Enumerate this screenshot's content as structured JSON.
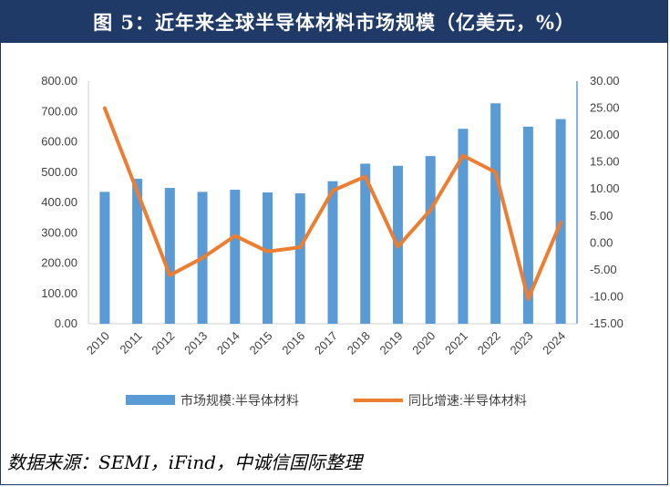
{
  "header": {
    "title": "图 5：近年来全球半导体材料市场规模（亿美元，%）"
  },
  "colors": {
    "bar": "#5b9bd5",
    "line": "#ed7d31",
    "title_bg": "#1f3a66"
  },
  "chart_data": {
    "type": "bar",
    "categories": [
      "2010",
      "2011",
      "2012",
      "2013",
      "2014",
      "2015",
      "2016",
      "2017",
      "2018",
      "2019",
      "2020",
      "2021",
      "2022",
      "2023",
      "2024"
    ],
    "series": [
      {
        "name": "市场规模:半导体材料",
        "type": "bar",
        "axis": "left",
        "values": [
          435,
          478,
          448,
          435,
          442,
          433,
          430,
          470,
          528,
          521,
          553,
          643,
          727,
          650,
          675
        ]
      },
      {
        "name": "同比增速:半导体材料",
        "type": "line",
        "axis": "right",
        "values": [
          25.0,
          9.5,
          -6.0,
          -2.8,
          1.3,
          -1.6,
          -0.8,
          9.7,
          12.3,
          -0.7,
          6.1,
          16.2,
          13.1,
          -10.4,
          3.8
        ]
      }
    ],
    "y_left": {
      "ylim": [
        0,
        800
      ],
      "ticks": [
        "0.00",
        "100.00",
        "200.00",
        "300.00",
        "400.00",
        "500.00",
        "600.00",
        "700.00",
        "800.00"
      ]
    },
    "y_right": {
      "ylim": [
        -15,
        30
      ],
      "ticks": [
        "-15.00",
        "-10.00",
        "-5.00",
        "0.00",
        "5.00",
        "10.00",
        "15.00",
        "20.00",
        "25.00",
        "30.00"
      ]
    },
    "legend_position": "bottom"
  },
  "source": "数据来源：SEMI，iFind，中诚信国际整理"
}
